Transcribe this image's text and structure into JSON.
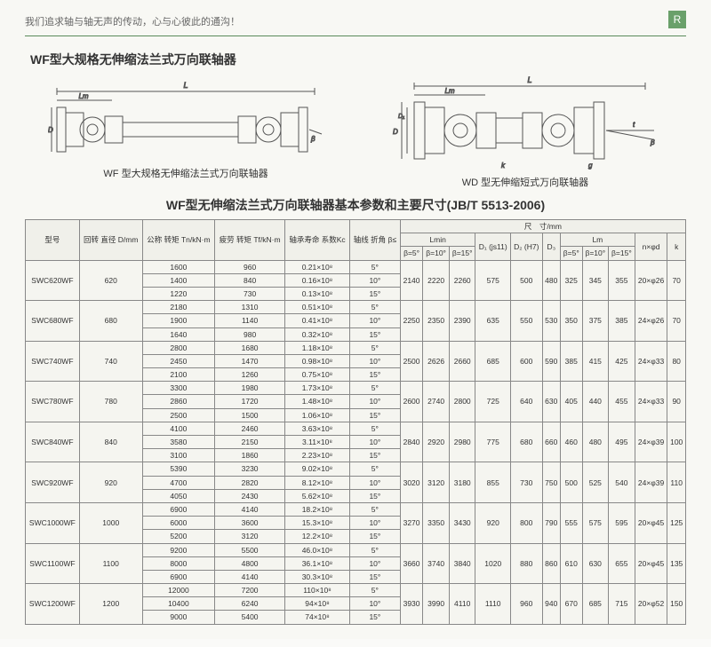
{
  "header": {
    "tagline": "我们追求轴与轴无声的传动，心与心彼此的通沟！",
    "logo_letter": "R"
  },
  "section_title": "WF型大规格无伸缩法兰式万向联轴器",
  "diagram_left_caption": "WF 型大规格无伸缩法兰式万向联轴器",
  "diagram_right_caption": "WD 型无伸缩短式万向联轴器",
  "table_title": "WF型无伸缩法兰式万向联轴器基本参数和主要尺寸(JB/T 5513-2006)",
  "table_diagram_colors": {
    "stroke": "#555",
    "fill_bg": "#f5f5f0",
    "hatch": "#888"
  },
  "headers": {
    "model": "型号",
    "D": "回转\n直径\nD/mm",
    "Tn": "公称\n转矩\nTn/kN·m",
    "Tf": "疲劳\n转矩\nTf/kN·m",
    "Kc": "轴承寿命\n系数Kc",
    "beta": "轴线\n折角\nβ≤",
    "dims": "尺　寸/mm",
    "Lmin": "Lmin",
    "beta5": "β=5°",
    "beta10": "β=10°",
    "beta15": "β=15°",
    "D1": "D₁\n(js11)",
    "D2": "D₂\n(H7)",
    "D3": "D₃",
    "Lm": "Lm",
    "nphi": "n×φd",
    "k": "k"
  },
  "rows": [
    {
      "model": "SWC620WF",
      "D": "620",
      "sub": [
        {
          "Tn": "1600",
          "Tf": "960",
          "Kc": "0.21×10⁸",
          "beta": "5°"
        },
        {
          "Tn": "1400",
          "Tf": "840",
          "Kc": "0.16×10⁸",
          "beta": "10°"
        },
        {
          "Tn": "1220",
          "Tf": "730",
          "Kc": "0.13×10⁸",
          "beta": "15°"
        }
      ],
      "L5": "2140",
      "L10": "2220",
      "L15": "2260",
      "D1": "575",
      "D2": "500",
      "D3": "480",
      "Lm5": "325",
      "Lm10": "345",
      "Lm15": "355",
      "nphi": "20×φ26",
      "k": "70"
    },
    {
      "model": "SWC680WF",
      "D": "680",
      "sub": [
        {
          "Tn": "2180",
          "Tf": "1310",
          "Kc": "0.51×10⁸",
          "beta": "5°"
        },
        {
          "Tn": "1900",
          "Tf": "1140",
          "Kc": "0.41×10⁸",
          "beta": "10°"
        },
        {
          "Tn": "1640",
          "Tf": "980",
          "Kc": "0.32×10⁸",
          "beta": "15°"
        }
      ],
      "L5": "2250",
      "L10": "2350",
      "L15": "2390",
      "D1": "635",
      "D2": "550",
      "D3": "530",
      "Lm5": "350",
      "Lm10": "375",
      "Lm15": "385",
      "nphi": "24×φ26",
      "k": "70"
    },
    {
      "model": "SWC740WF",
      "D": "740",
      "sub": [
        {
          "Tn": "2800",
          "Tf": "1680",
          "Kc": "1.18×10⁸",
          "beta": "5°"
        },
        {
          "Tn": "2450",
          "Tf": "1470",
          "Kc": "0.98×10⁸",
          "beta": "10°"
        },
        {
          "Tn": "2100",
          "Tf": "1260",
          "Kc": "0.75×10⁸",
          "beta": "15°"
        }
      ],
      "L5": "2500",
      "L10": "2626",
      "L15": "2660",
      "D1": "685",
      "D2": "600",
      "D3": "590",
      "Lm5": "385",
      "Lm10": "415",
      "Lm15": "425",
      "nphi": "24×φ33",
      "k": "80"
    },
    {
      "model": "SWC780WF",
      "D": "780",
      "sub": [
        {
          "Tn": "3300",
          "Tf": "1980",
          "Kc": "1.73×10⁸",
          "beta": "5°"
        },
        {
          "Tn": "2860",
          "Tf": "1720",
          "Kc": "1.48×10⁸",
          "beta": "10°"
        },
        {
          "Tn": "2500",
          "Tf": "1500",
          "Kc": "1.06×10⁸",
          "beta": "15°"
        }
      ],
      "L5": "2600",
      "L10": "2740",
      "L15": "2800",
      "D1": "725",
      "D2": "640",
      "D3": "630",
      "Lm5": "405",
      "Lm10": "440",
      "Lm15": "455",
      "nphi": "24×φ33",
      "k": "90"
    },
    {
      "model": "SWC840WF",
      "D": "840",
      "sub": [
        {
          "Tn": "4100",
          "Tf": "2460",
          "Kc": "3.63×10⁸",
          "beta": "5°"
        },
        {
          "Tn": "3580",
          "Tf": "2150",
          "Kc": "3.11×10⁸",
          "beta": "10°"
        },
        {
          "Tn": "3100",
          "Tf": "1860",
          "Kc": "2.23×10⁸",
          "beta": "15°"
        }
      ],
      "L5": "2840",
      "L10": "2920",
      "L15": "2980",
      "D1": "775",
      "D2": "680",
      "D3": "660",
      "Lm5": "460",
      "Lm10": "480",
      "Lm15": "495",
      "nphi": "24×φ39",
      "k": "100"
    },
    {
      "model": "SWC920WF",
      "D": "920",
      "sub": [
        {
          "Tn": "5390",
          "Tf": "3230",
          "Kc": "9.02×10⁸",
          "beta": "5°"
        },
        {
          "Tn": "4700",
          "Tf": "2820",
          "Kc": "8.12×10⁸",
          "beta": "10°"
        },
        {
          "Tn": "4050",
          "Tf": "2430",
          "Kc": "5.62×10⁸",
          "beta": "15°"
        }
      ],
      "L5": "3020",
      "L10": "3120",
      "L15": "3180",
      "D1": "855",
      "D2": "730",
      "D3": "750",
      "Lm5": "500",
      "Lm10": "525",
      "Lm15": "540",
      "nphi": "24×φ39",
      "k": "110"
    },
    {
      "model": "SWC1000WF",
      "D": "1000",
      "sub": [
        {
          "Tn": "6900",
          "Tf": "4140",
          "Kc": "18.2×10⁸",
          "beta": "5°"
        },
        {
          "Tn": "6000",
          "Tf": "3600",
          "Kc": "15.3×10⁸",
          "beta": "10°"
        },
        {
          "Tn": "5200",
          "Tf": "3120",
          "Kc": "12.2×10⁸",
          "beta": "15°"
        }
      ],
      "L5": "3270",
      "L10": "3350",
      "L15": "3430",
      "D1": "920",
      "D2": "800",
      "D3": "790",
      "Lm5": "555",
      "Lm10": "575",
      "Lm15": "595",
      "nphi": "20×φ45",
      "k": "125"
    },
    {
      "model": "SWC1100WF",
      "D": "1100",
      "sub": [
        {
          "Tn": "9200",
          "Tf": "5500",
          "Kc": "46.0×10⁸",
          "beta": "5°"
        },
        {
          "Tn": "8000",
          "Tf": "4800",
          "Kc": "36.1×10⁸",
          "beta": "10°"
        },
        {
          "Tn": "6900",
          "Tf": "4140",
          "Kc": "30.3×10⁸",
          "beta": "15°"
        }
      ],
      "L5": "3660",
      "L10": "3740",
      "L15": "3840",
      "D1": "1020",
      "D2": "880",
      "D3": "860",
      "Lm5": "610",
      "Lm10": "630",
      "Lm15": "655",
      "nphi": "20×φ45",
      "k": "135"
    },
    {
      "model": "SWC1200WF",
      "D": "1200",
      "sub": [
        {
          "Tn": "12000",
          "Tf": "7200",
          "Kc": "110×10⁸",
          "beta": "5°"
        },
        {
          "Tn": "10400",
          "Tf": "6240",
          "Kc": "94×10⁸",
          "beta": "10°"
        },
        {
          "Tn": "9000",
          "Tf": "5400",
          "Kc": "74×10⁸",
          "beta": "15°"
        }
      ],
      "L5": "3930",
      "L10": "3990",
      "L15": "4110",
      "D1": "1110",
      "D2": "960",
      "D3": "940",
      "Lm5": "670",
      "Lm10": "685",
      "Lm15": "715",
      "nphi": "20×φ52",
      "k": "150"
    }
  ],
  "diagram_labels": {
    "left": {
      "L": "L",
      "Lm": "Lm",
      "D": "D",
      "D1": "D₁",
      "D2": "D₂",
      "beta": "β",
      "t": "t",
      "k": "k",
      "A": "A"
    },
    "right": {
      "L": "L",
      "Lm": "Lm",
      "D": "D",
      "D1": "D₁",
      "D2": "D₂",
      "beta": "β",
      "t": "t",
      "k": "k",
      "g": "g",
      "A": "A"
    }
  }
}
